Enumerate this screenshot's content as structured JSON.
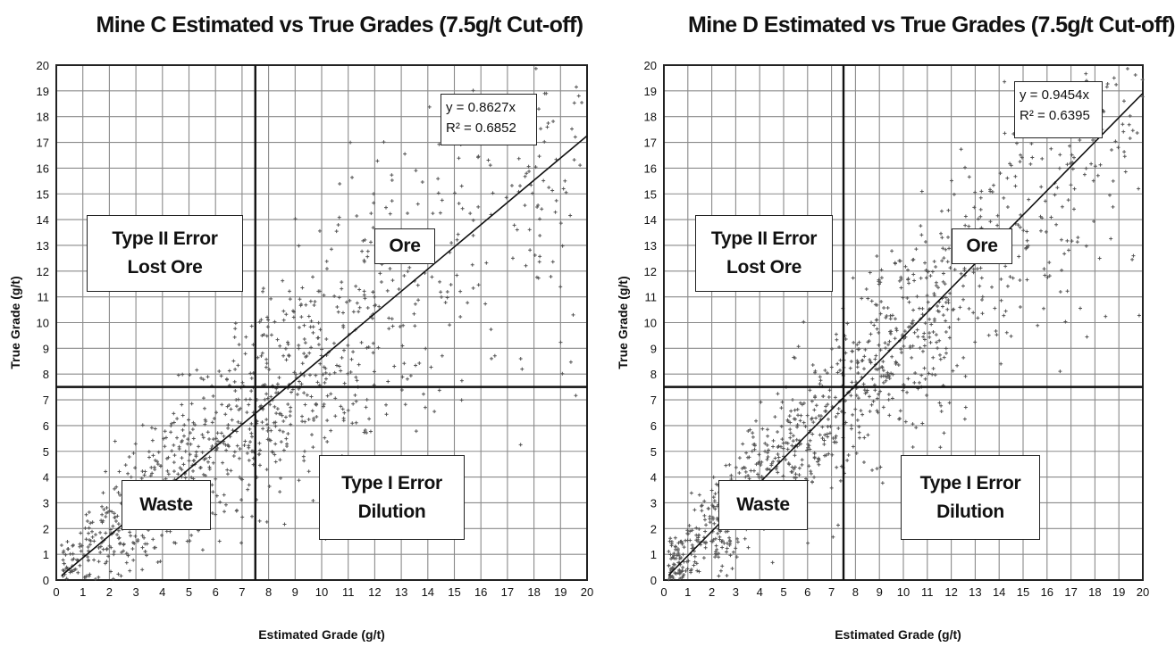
{
  "chart_data": [
    {
      "type": "scatter",
      "title": "Mine C Estimated vs True Grades (7.5g/t Cut-off)",
      "xlabel": "Estimated Grade (g/t)",
      "ylabel": "True Grade (g/t)",
      "xlim": [
        0,
        20
      ],
      "ylim": [
        0,
        20
      ],
      "x_ticks": [
        "0",
        "1",
        "2",
        "3",
        "4",
        "5",
        "6",
        "7",
        "8",
        "9",
        "10",
        "11",
        "12",
        "13",
        "14",
        "15",
        "16",
        "17",
        "18",
        "19",
        "20"
      ],
      "y_ticks": [
        "0",
        "1",
        "2",
        "3",
        "4",
        "5",
        "6",
        "7",
        "8",
        "9",
        "10",
        "11",
        "12",
        "13",
        "14",
        "15",
        "16",
        "17",
        "18",
        "19",
        "20"
      ],
      "grid": true,
      "cutoff": 7.5,
      "trendline": {
        "slope": 0.8627,
        "equation": "y = 0.8627x",
        "r2": "R² = 0.6852"
      },
      "scatter_spread": 2.3,
      "annotations": {
        "lost_ore": [
          "Type II Error",
          "Lost Ore"
        ],
        "ore": "Ore",
        "waste": "Waste",
        "dilution": [
          "Type I Error",
          "Dilution"
        ]
      }
    },
    {
      "type": "scatter",
      "title": "Mine D Estimated vs True Grades (7.5g/t Cut-off)",
      "xlabel": "Estimated Grade (g/t)",
      "ylabel": "True Grade (g/t)",
      "xlim": [
        0,
        20
      ],
      "ylim": [
        0,
        20
      ],
      "x_ticks": [
        "0",
        "1",
        "2",
        "3",
        "4",
        "5",
        "6",
        "7",
        "8",
        "9",
        "10",
        "11",
        "12",
        "13",
        "14",
        "15",
        "16",
        "17",
        "18",
        "19",
        "20"
      ],
      "y_ticks": [
        "0",
        "1",
        "2",
        "3",
        "4",
        "5",
        "6",
        "7",
        "8",
        "9",
        "10",
        "11",
        "12",
        "13",
        "14",
        "15",
        "16",
        "17",
        "18",
        "19",
        "20"
      ],
      "grid": true,
      "cutoff": 7.5,
      "trendline": {
        "slope": 0.9454,
        "equation": "y = 0.9454x",
        "r2": "R² = 0.6395"
      },
      "scatter_spread": 1.9,
      "annotations": {
        "lost_ore": [
          "Type II Error",
          "Lost Ore"
        ],
        "ore": "Ore",
        "waste": "Waste",
        "dilution": [
          "Type I Error",
          "Dilution"
        ]
      }
    }
  ]
}
